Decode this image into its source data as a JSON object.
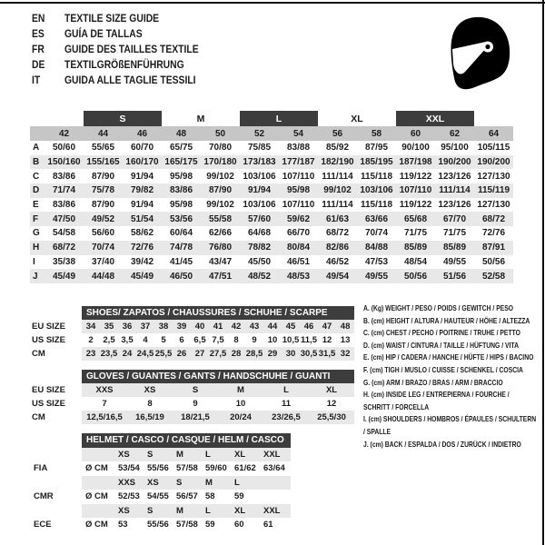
{
  "colors": {
    "dark_bar": "#3d3d3d",
    "column_header_bg": "#c6c6c6",
    "row_stripe_bg": "#e8e8e8",
    "text": "#1c1c1c",
    "header_text": "#ffffff",
    "icon_black": "#000000"
  },
  "languages": [
    {
      "code": "EN",
      "title": "TEXTILE SIZE GUIDE"
    },
    {
      "code": "ES",
      "title": "GUÍA DE TALLAS"
    },
    {
      "code": "FR",
      "title": "GUIDE DES TAILLES TEXTILE"
    },
    {
      "code": "DE",
      "title": "TEXTILGRÖßENFÜHRUNG"
    },
    {
      "code": "IT",
      "title": "GUIDA ALLE TAGLIE TESSILI"
    }
  ],
  "helmet_icon": "racing-helmet-icon",
  "textile_table": {
    "size_bands": [
      {
        "label": "",
        "span": 2,
        "dark": false
      },
      {
        "label": "S",
        "span": 2,
        "dark": true
      },
      {
        "label": "M",
        "span": 2,
        "dark": false
      },
      {
        "label": "L",
        "span": 2,
        "dark": true
      },
      {
        "label": "XL",
        "span": 2,
        "dark": false
      },
      {
        "label": "XXL",
        "span": 2,
        "dark": true
      },
      {
        "label": "",
        "span": 1,
        "dark": false
      }
    ],
    "columns": [
      "42",
      "44",
      "46",
      "48",
      "50",
      "52",
      "54",
      "56",
      "58",
      "60",
      "62",
      "64"
    ],
    "rows": [
      {
        "label": "A",
        "values": [
          "50/60",
          "55/65",
          "60/70",
          "65/75",
          "70/80",
          "75/85",
          "83/88",
          "85/92",
          "87/95",
          "90/100",
          "95/100",
          "105/115"
        ]
      },
      {
        "label": "B",
        "values": [
          "150/160",
          "155/165",
          "160/170",
          "165/175",
          "170/180",
          "173/183",
          "177/187",
          "182/190",
          "185/195",
          "187/198",
          "190/200",
          "190/200"
        ]
      },
      {
        "label": "C",
        "values": [
          "83/86",
          "87/90",
          "91/94",
          "95/98",
          "99/102",
          "103/106",
          "107/110",
          "111/114",
          "115/118",
          "119/122",
          "123/126",
          "127/130"
        ]
      },
      {
        "label": "D",
        "values": [
          "71/74",
          "75/78",
          "79/82",
          "83/86",
          "87/90",
          "91/94",
          "95/98",
          "99/102",
          "103/106",
          "107/110",
          "111/114",
          "115/119"
        ]
      },
      {
        "label": "E",
        "values": [
          "83/86",
          "87/90",
          "91/94",
          "95/98",
          "99/102",
          "103/106",
          "107/110",
          "111/114",
          "115/118",
          "119/122",
          "123/126",
          "127/130"
        ]
      },
      {
        "label": "F",
        "values": [
          "47/50",
          "49/52",
          "51/54",
          "53/56",
          "55/58",
          "57/60",
          "59/62",
          "61/63",
          "63/66",
          "65/68",
          "67/70",
          "68/72"
        ]
      },
      {
        "label": "G",
        "values": [
          "54/58",
          "56/60",
          "58/62",
          "60/64",
          "62/66",
          "64/68",
          "66/70",
          "68/72",
          "70/74",
          "71/75",
          "71/75",
          "72/76"
        ]
      },
      {
        "label": "H",
        "values": [
          "68/72",
          "70/74",
          "72/76",
          "74/78",
          "76/80",
          "78/82",
          "80/84",
          "82/86",
          "84/88",
          "85/89",
          "85/89",
          "87/91"
        ]
      },
      {
        "label": "I",
        "values": [
          "35/38",
          "37/40",
          "39/42",
          "41/45",
          "43/47",
          "45/50",
          "46/51",
          "46/52",
          "47/53",
          "48/54",
          "49/55",
          "50/56"
        ]
      },
      {
        "label": "J",
        "values": [
          "45/49",
          "44/48",
          "45/49",
          "46/50",
          "47/51",
          "48/52",
          "48/53",
          "49/54",
          "49/55",
          "50/56",
          "51/56",
          "52/58"
        ]
      }
    ]
  },
  "shoes_table": {
    "header": "SHOES/ ZAPATOS / CHAUSSURES / SCHUHE / SCARPE",
    "rows": [
      {
        "label": "EU SIZE",
        "shaded": true,
        "values": [
          "34",
          "35",
          "36",
          "37",
          "38",
          "39",
          "40",
          "41",
          "42",
          "43",
          "44",
          "45",
          "46",
          "47",
          "48"
        ]
      },
      {
        "label": "US SIZE",
        "shaded": false,
        "values": [
          "2",
          "2,5",
          "3,5",
          "4",
          "5",
          "6",
          "6,5",
          "7,5",
          "8",
          "9",
          "10",
          "10,5",
          "11,5",
          "12",
          "13"
        ]
      },
      {
        "label": "CM",
        "shaded": true,
        "values": [
          "23",
          "23,5",
          "24",
          "24,5",
          "25,5",
          "26",
          "27",
          "27,5",
          "28",
          "28,5",
          "29",
          "30",
          "30,5",
          "31,5",
          "32"
        ]
      }
    ]
  },
  "gloves_table": {
    "header": "GLOVES / GUANTES / GANTS / HANDSCHUHE / GUANTI",
    "rows": [
      {
        "label": "EU SIZE",
        "shaded": true,
        "values": [
          "XXS",
          "XS",
          "S",
          "M",
          "L",
          "XL"
        ]
      },
      {
        "label": "US SIZE",
        "shaded": false,
        "values": [
          "7",
          "8",
          "9",
          "10",
          "11",
          "12"
        ]
      },
      {
        "label": "CM",
        "shaded": true,
        "values": [
          "12,5/16,5",
          "16,5/19",
          "18/21,5",
          "20/24",
          "23/26,5",
          "25,5/30"
        ]
      }
    ]
  },
  "helmet_table": {
    "header": "HELMET / CASCO / CASQUE / HELM / CASCO",
    "rows": [
      {
        "label": "",
        "unit": "",
        "shaded": true,
        "values": [
          "XS",
          "S",
          "M",
          "L",
          "XL",
          "XXL"
        ]
      },
      {
        "label": "FIA",
        "unit": "Ø CM",
        "shaded": false,
        "values": [
          "53/54",
          "55/56",
          "57/58",
          "59/60",
          "61/62",
          "63/64"
        ]
      },
      {
        "label": "",
        "unit": "",
        "shaded": true,
        "values": [
          "XXS",
          "XS",
          "S",
          "M",
          "L",
          ""
        ]
      },
      {
        "label": "CMR",
        "unit": "Ø CM",
        "shaded": false,
        "values": [
          "52/53",
          "54/55",
          "56/57",
          "58",
          "59",
          ""
        ]
      },
      {
        "label": "",
        "unit": "",
        "shaded": true,
        "values": [
          "XS",
          "S",
          "M",
          "L",
          "XL",
          "XXL"
        ]
      },
      {
        "label": "ECE",
        "unit": "Ø CM",
        "shaded": false,
        "values": [
          "53",
          "55/56",
          "57/58",
          "59",
          "60",
          "61"
        ]
      }
    ]
  },
  "legend": {
    "items": [
      "A. (Kg) WEIGHT / PESO / POIDS / GEWITCH / PESO",
      "B. (cm) HEIGHT / ALTURA / HAUTEUR / HÖHE / ALTEZZA",
      "C. (cm) CHEST / PECHO / POITRINE / TRUHE / PETTO",
      "D. (cm) WAIST / CINTURA / TAILLE / HÜFTUNG / VITA",
      "E. (cm) HIP / CADERA / HANCHE / HÜFTE / HIPS / BACINO",
      "F. (cm) TIGH / MUSLO / CUISSE / SCHENKEL / COSCIA",
      "G. (cm) ARM / BRAZO / BRAS / ARM / BRACCIO",
      "H. (cm) INSIDE LEG / ENTREPIERNA / FOURCHE / SCHRITT / FORCELLA",
      "I. (cm) SHOULDERS / HOMBROS / ÉPAULES / SCHULTERN / SPALLE",
      "J. (cm) BACK / ESPALDA / DOS / ZURÜCK / INDIETRO"
    ]
  }
}
